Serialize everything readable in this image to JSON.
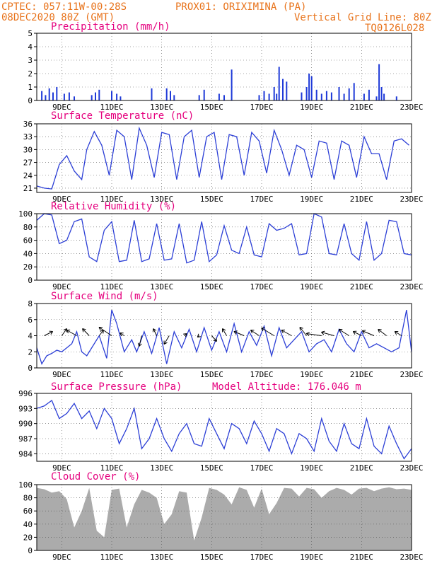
{
  "header": {
    "line1_left": "CPTEC:  057:11W-00:28S",
    "line1_right": "PROX01: ORIXIMINA (PA)",
    "date": "08DEC2020 80Z (GMT)",
    "grid_line": "Vertical Grid Line: 80Z",
    "code": "TQ0126L028"
  },
  "colors": {
    "header": "#e8731b",
    "title": "#e5007e",
    "line": "#2c3fd6",
    "bar": "#1f3ad8",
    "cloud": "#ababab",
    "grid": "#555555"
  },
  "x_ticks": [
    "9DEC",
    "11DEC",
    "13DEC",
    "15DEC",
    "17DEC",
    "19DEC",
    "21DEC",
    "23DEC"
  ],
  "x_tick_days": [
    9,
    11,
    13,
    15,
    17,
    19,
    21,
    23
  ],
  "chart_data": [
    {
      "id": "precip",
      "type": "bar",
      "title": "Precipitation (mm/h)",
      "ylim": [
        0,
        5
      ],
      "yticks": [
        0,
        1,
        2,
        3,
        4,
        5
      ],
      "x": [
        8.2,
        8.35,
        8.5,
        8.65,
        8.8,
        9.1,
        9.3,
        9.5,
        10.2,
        10.35,
        10.5,
        11.0,
        11.2,
        11.35,
        12.6,
        13.2,
        13.35,
        13.5,
        14.5,
        14.7,
        15.3,
        15.5,
        15.8,
        16.9,
        17.1,
        17.3,
        17.5,
        17.6,
        17.7,
        17.85,
        18.0,
        18.6,
        18.8,
        18.9,
        19.0,
        19.2,
        19.4,
        19.6,
        19.8,
        20.1,
        20.3,
        20.5,
        20.7,
        21.1,
        21.3,
        21.6,
        21.7,
        21.8,
        21.9,
        22.4
      ],
      "values": [
        0.7,
        0.4,
        0.9,
        0.6,
        1.0,
        0.5,
        0.6,
        0.3,
        0.4,
        0.6,
        0.8,
        0.7,
        0.5,
        0.3,
        0.9,
        0.9,
        0.7,
        0.4,
        0.4,
        0.8,
        0.5,
        0.4,
        2.3,
        0.4,
        0.7,
        0.5,
        1.0,
        0.5,
        2.5,
        1.6,
        1.4,
        0.6,
        1.0,
        2.0,
        1.8,
        0.8,
        0.5,
        0.7,
        0.6,
        1.0,
        0.5,
        0.9,
        1.3,
        0.5,
        0.8,
        0.3,
        2.7,
        1.0,
        0.5,
        0.3
      ]
    },
    {
      "id": "temp",
      "type": "line",
      "title": "Surface Temperature (nC)",
      "ylim": [
        20,
        36
      ],
      "yticks": [
        21,
        24,
        27,
        30,
        33,
        36
      ],
      "x": [
        8.0,
        8.3,
        8.6,
        8.9,
        9.2,
        9.5,
        9.8,
        10.0,
        10.3,
        10.6,
        10.9,
        11.2,
        11.5,
        11.8,
        12.1,
        12.4,
        12.7,
        13.0,
        13.3,
        13.6,
        13.9,
        14.2,
        14.5,
        14.8,
        15.1,
        15.4,
        15.7,
        16.0,
        16.3,
        16.6,
        16.9,
        17.2,
        17.5,
        17.8,
        18.1,
        18.4,
        18.7,
        19.0,
        19.3,
        19.6,
        19.9,
        20.2,
        20.5,
        20.8,
        21.1,
        21.4,
        21.7,
        22.0,
        22.3,
        22.6,
        22.9
      ],
      "values": [
        21.5,
        21.0,
        20.8,
        26.5,
        28.6,
        25.0,
        23.0,
        30.0,
        34.2,
        31.0,
        24.0,
        34.5,
        33.0,
        23.0,
        35.0,
        31.0,
        23.5,
        34.0,
        33.5,
        23.0,
        33.0,
        34.5,
        23.5,
        33.0,
        34.0,
        23.0,
        33.5,
        33.0,
        24.0,
        34.0,
        32.0,
        24.5,
        34.5,
        30.0,
        24.0,
        31.0,
        30.0,
        23.5,
        32.0,
        31.5,
        23.0,
        32.0,
        31.0,
        23.5,
        33.0,
        29.0,
        29.0,
        23.0,
        32.0,
        32.5,
        31.0
      ]
    },
    {
      "id": "rh",
      "type": "line",
      "title": "Relative Humidity (%)",
      "ylim": [
        0,
        100
      ],
      "yticks": [
        0,
        20,
        40,
        60,
        80,
        100
      ],
      "x": [
        8.0,
        8.3,
        8.6,
        8.9,
        9.2,
        9.5,
        9.8,
        10.1,
        10.4,
        10.7,
        11.0,
        11.3,
        11.6,
        11.9,
        12.2,
        12.5,
        12.8,
        13.1,
        13.4,
        13.7,
        14.0,
        14.3,
        14.6,
        14.9,
        15.2,
        15.5,
        15.8,
        16.1,
        16.4,
        16.7,
        17.0,
        17.3,
        17.6,
        17.9,
        18.2,
        18.5,
        18.8,
        19.1,
        19.4,
        19.7,
        20.0,
        20.3,
        20.6,
        20.9,
        21.2,
        21.5,
        21.8,
        22.1,
        22.4,
        22.7,
        23.0
      ],
      "values": [
        90,
        100,
        98,
        55,
        60,
        88,
        92,
        35,
        28,
        75,
        88,
        28,
        30,
        90,
        28,
        32,
        85,
        30,
        32,
        85,
        26,
        30,
        88,
        28,
        38,
        82,
        45,
        40,
        80,
        38,
        35,
        85,
        75,
        78,
        85,
        38,
        40,
        100,
        95,
        40,
        38,
        85,
        40,
        30,
        88,
        30,
        40,
        90,
        88,
        40,
        38
      ]
    },
    {
      "id": "wind",
      "type": "line",
      "title": "Surface Wind (m/s)",
      "ylim": [
        0,
        8
      ],
      "yticks": [
        0,
        2,
        4,
        6,
        8
      ],
      "x": [
        8.0,
        8.2,
        8.4,
        8.6,
        8.8,
        9.0,
        9.2,
        9.4,
        9.6,
        9.8,
        10.0,
        10.2,
        10.5,
        10.8,
        11.0,
        11.2,
        11.5,
        11.8,
        12.0,
        12.3,
        12.6,
        12.9,
        13.2,
        13.5,
        13.8,
        14.1,
        14.4,
        14.7,
        15.0,
        15.3,
        15.6,
        15.9,
        16.2,
        16.5,
        16.8,
        17.1,
        17.4,
        17.7,
        18.0,
        18.3,
        18.6,
        18.9,
        19.2,
        19.5,
        19.8,
        20.1,
        20.4,
        20.7,
        21.0,
        21.3,
        21.6,
        21.9,
        22.2,
        22.5,
        22.8,
        23.0
      ],
      "values": [
        2.5,
        0.5,
        1.5,
        1.8,
        2.2,
        2.0,
        2.5,
        3.0,
        4.5,
        2.0,
        1.5,
        2.5,
        4.0,
        1.2,
        7.2,
        5.5,
        2.0,
        3.5,
        2.0,
        4.5,
        1.8,
        5.0,
        0.5,
        4.5,
        2.5,
        4.8,
        2.0,
        5.0,
        2.2,
        4.5,
        2.0,
        5.5,
        2.0,
        4.5,
        2.8,
        5.2,
        1.5,
        5.0,
        2.5,
        3.5,
        4.5,
        2.0,
        3.0,
        3.5,
        2.0,
        4.8,
        3.0,
        2.0,
        4.5,
        2.5,
        3.0,
        2.5,
        2.0,
        2.5,
        7.2,
        2.0
      ],
      "vector_x": [
        8.3,
        9.0,
        9.6,
        10.1,
        10.5,
        11.0,
        11.5,
        12.2,
        12.8,
        13.3,
        13.9,
        14.5,
        15.0,
        15.6,
        16.3,
        16.9,
        17.5,
        18.2,
        18.8,
        19.4,
        19.9,
        20.5,
        21.0,
        21.5,
        22.0,
        22.6
      ],
      "vector_u": [
        1.0,
        0.6,
        -1.2,
        -0.8,
        0.5,
        -1.5,
        -0.5,
        -0.3,
        -0.4,
        -0.6,
        0.3,
        -0.2,
        0.6,
        -0.5,
        -1.2,
        -1.0,
        -1.5,
        -1.2,
        -0.8,
        -1.8,
        -1.5,
        -1.2,
        -1.0,
        -1.4,
        -1.0,
        -0.8
      ],
      "vector_v": [
        0.6,
        1.0,
        0.8,
        1.0,
        0.8,
        1.2,
        0.4,
        -1.5,
        1.0,
        -1.2,
        0.3,
        -0.2,
        -0.8,
        1.0,
        0.6,
        0.8,
        1.1,
        0.8,
        1.2,
        0.3,
        0.5,
        0.9,
        0.6,
        0.7,
        0.9,
        0.6
      ]
    },
    {
      "id": "pres",
      "type": "line",
      "title": "Surface Pressure (hPa)",
      "subtitle": "Model Altitude: 176.046 m",
      "ylim": [
        982.5,
        996
      ],
      "yticks": [
        984,
        987,
        990,
        993,
        996
      ],
      "x": [
        8.0,
        8.3,
        8.6,
        8.9,
        9.2,
        9.5,
        9.8,
        10.1,
        10.4,
        10.7,
        11.0,
        11.3,
        11.6,
        11.9,
        12.2,
        12.5,
        12.8,
        13.1,
        13.4,
        13.7,
        14.0,
        14.3,
        14.6,
        14.9,
        15.2,
        15.5,
        15.8,
        16.1,
        16.4,
        16.7,
        17.0,
        17.3,
        17.6,
        17.9,
        18.2,
        18.5,
        18.8,
        19.1,
        19.4,
        19.7,
        20.0,
        20.3,
        20.6,
        20.9,
        21.2,
        21.5,
        21.8,
        22.1,
        22.4,
        22.7,
        23.0
      ],
      "values": [
        993,
        993.5,
        994.6,
        991,
        992,
        994,
        991,
        992.5,
        989,
        993,
        991,
        986,
        989,
        993,
        985,
        987,
        991,
        987,
        984.5,
        988,
        990,
        986,
        985.5,
        991,
        988,
        985,
        990,
        989,
        986,
        990.5,
        988,
        984.5,
        989,
        988,
        984,
        988,
        987,
        984.5,
        991,
        986.5,
        984.5,
        990,
        986,
        985,
        991,
        985.5,
        984,
        989.5,
        986,
        983,
        985
      ]
    },
    {
      "id": "cloud",
      "type": "area",
      "title": "Cloud Cover (%)",
      "ylim": [
        0,
        100
      ],
      "yticks": [
        0,
        20,
        40,
        60,
        80,
        100
      ],
      "x": [
        8.0,
        8.3,
        8.6,
        8.9,
        9.2,
        9.5,
        9.8,
        10.1,
        10.4,
        10.7,
        11.0,
        11.3,
        11.6,
        11.9,
        12.2,
        12.5,
        12.8,
        13.1,
        13.4,
        13.7,
        14.0,
        14.3,
        14.6,
        14.9,
        15.2,
        15.5,
        15.8,
        16.1,
        16.4,
        16.7,
        17.0,
        17.3,
        17.6,
        17.9,
        18.2,
        18.5,
        18.8,
        19.1,
        19.4,
        19.7,
        20.0,
        20.3,
        20.6,
        20.9,
        21.2,
        21.5,
        21.8,
        22.1,
        22.4,
        22.7,
        23.0
      ],
      "values": [
        95,
        93,
        88,
        90,
        78,
        35,
        60,
        95,
        30,
        20,
        92,
        94,
        35,
        70,
        92,
        88,
        80,
        40,
        55,
        90,
        88,
        15,
        50,
        95,
        92,
        85,
        70,
        96,
        92,
        65,
        94,
        55,
        72,
        95,
        94,
        82,
        95,
        93,
        80,
        90,
        95,
        92,
        85,
        94,
        95,
        90,
        94,
        96,
        93,
        94,
        92
      ]
    }
  ]
}
